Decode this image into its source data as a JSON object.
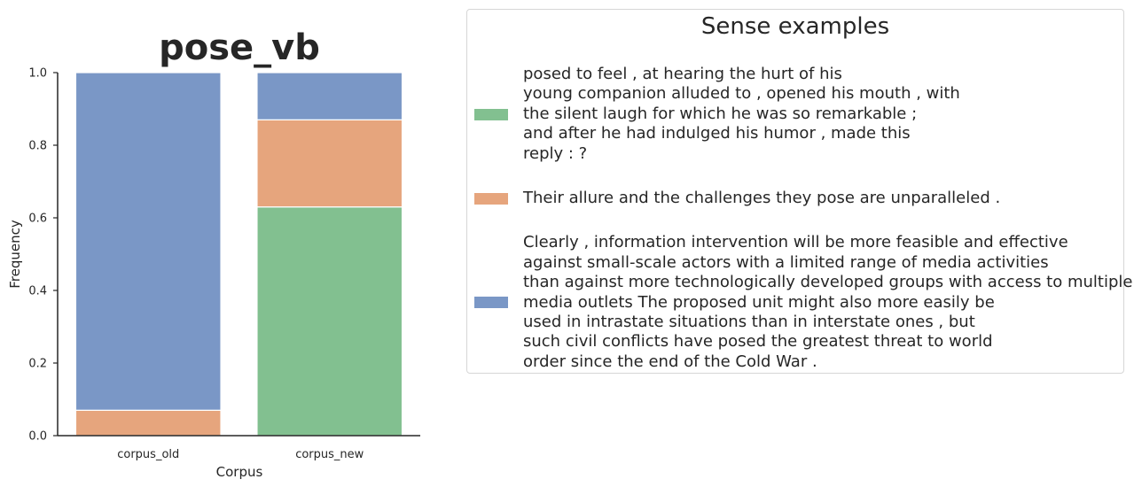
{
  "chart_data": {
    "type": "bar",
    "stacked": true,
    "title": "pose_vb",
    "xlabel": "Corpus",
    "ylabel": "Frequency",
    "ylim": [
      0,
      1.0
    ],
    "yticks": [
      "0.0",
      "0.2",
      "0.4",
      "0.6",
      "0.8",
      "1.0"
    ],
    "categories": [
      "corpus_old",
      "corpus_new"
    ],
    "series": [
      {
        "color": "#82c090",
        "values": [
          0.0,
          0.63
        ]
      },
      {
        "color": "#e6a57d",
        "values": [
          0.07,
          0.24
        ]
      },
      {
        "color": "#7a97c6",
        "values": [
          0.93,
          0.13
        ]
      }
    ],
    "legend": {
      "title": "Sense examples",
      "placement": "right",
      "entries": [
        {
          "color": "#82c090",
          "lines": [
            "posed to feel , at hearing the hurt of his",
            "young companion alluded to , opened his mouth , with",
            "the silent laugh for which he was so remarkable ;",
            "and after he had indulged his humor , made this",
            "reply : ?"
          ]
        },
        {
          "color": "#e6a57d",
          "lines": [
            "Their allure and the challenges they pose are unparalleled ."
          ]
        },
        {
          "color": "#7a97c6",
          "lines": [
            "Clearly , information intervention will be more feasible and effective",
            "against small-scale actors with a limited range of media activities",
            "than against more technologically developed groups with access to multiple",
            "media outlets The proposed unit might also more easily be",
            "used in intrastate situations than in interstate ones , but",
            "such civil conflicts have posed the greatest threat to world",
            "order since the end of the Cold War ."
          ]
        }
      ]
    }
  }
}
